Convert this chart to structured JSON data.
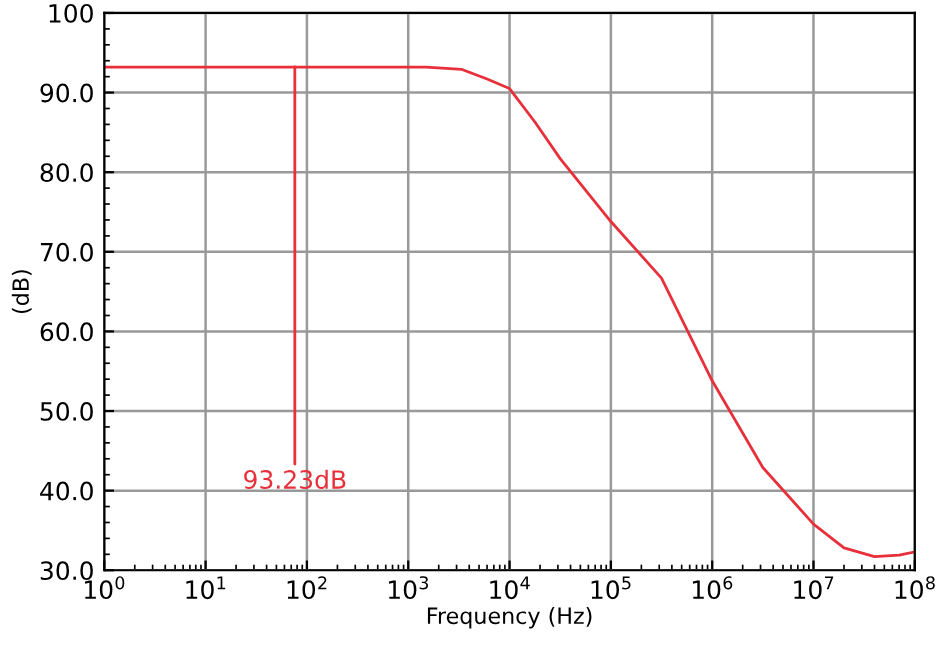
{
  "chart_data": {
    "type": "line",
    "xlabel": "Frequency (Hz)",
    "ylabel": "(dB)",
    "log": "x",
    "xlim": [
      1,
      100000000
    ],
    "ylim": [
      30,
      100
    ],
    "xticks": [
      {
        "value": 1,
        "label": "10$^{0}$"
      },
      {
        "value": 10,
        "label": "10$^{1}$"
      },
      {
        "value": 100,
        "label": "10$^{2}$"
      },
      {
        "value": 1000,
        "label": "10$^{3}$"
      },
      {
        "value": 10000,
        "label": "10$^{4}$"
      },
      {
        "value": 100000,
        "label": "10$^{5}$"
      },
      {
        "value": 1000000,
        "label": "10$^{6}$"
      },
      {
        "value": 10000000,
        "label": "10$^{7}$"
      },
      {
        "value": 100000000,
        "label": "10$^{8}$"
      }
    ],
    "yticks": [
      {
        "value": 30,
        "label": "30.0"
      },
      {
        "value": 40,
        "label": "40.0"
      },
      {
        "value": 50,
        "label": "50.0"
      },
      {
        "value": 60,
        "label": "60.0"
      },
      {
        "value": 70,
        "label": "70.0"
      },
      {
        "value": 80,
        "label": "80.0"
      },
      {
        "value": 90,
        "label": "90.0"
      },
      {
        "value": 100,
        "label": "100"
      }
    ],
    "grid": true,
    "series": [
      {
        "color": "#e8303a",
        "x": [
          1,
          10,
          100,
          1000,
          1500,
          3400,
          6000,
          10000,
          17800,
          31600,
          100000,
          316000,
          1000000,
          3160000,
          10000000,
          20000000,
          40000000,
          70000000,
          100000000
        ],
        "values": [
          93.2,
          93.2,
          93.2,
          93.2,
          93.2,
          92.9,
          91.7,
          90.5,
          86.3,
          81.7,
          73.8,
          66.7,
          53.8,
          42.9,
          35.8,
          32.8,
          31.7,
          31.9,
          32.3
        ]
      }
    ],
    "annotations": [
      {
        "text": "93.23dB",
        "x": 76,
        "y": 93.23
      }
    ]
  }
}
